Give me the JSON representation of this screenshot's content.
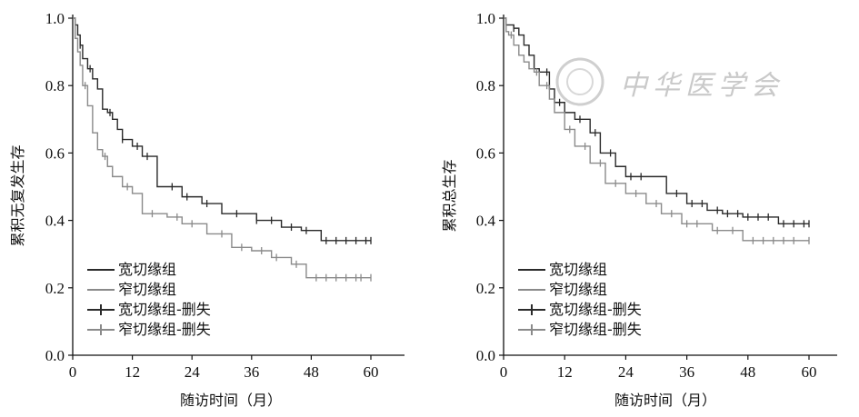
{
  "watermark": {
    "text": "中华医学会"
  },
  "colors": {
    "wide": "#2a2a2a",
    "narrow": "#8a8a8a",
    "axis": "#111111",
    "watermark": "#c9c9c9"
  },
  "chart_data": [
    {
      "type": "line",
      "title": "",
      "xlabel": "随访时间（月）",
      "ylabel": "累积无复发生存",
      "xlim": [
        0,
        60
      ],
      "ylim": [
        0,
        1.0
      ],
      "xticks": [
        0,
        12,
        24,
        36,
        48,
        60
      ],
      "yticks": [
        "0.0",
        "0.2",
        "0.4",
        "0.6",
        "0.8",
        "1.0"
      ],
      "legend": {
        "position": "bottom-left",
        "entries": [
          {
            "label": "宽切缘组",
            "style": "line",
            "series": "wide"
          },
          {
            "label": "窄切缘组",
            "style": "line",
            "series": "narrow"
          },
          {
            "label": "宽切缘组-删失",
            "style": "censor",
            "series": "wide"
          },
          {
            "label": "窄切缘组-删失",
            "style": "censor",
            "series": "narrow"
          }
        ]
      },
      "series": [
        {
          "name": "宽切缘组",
          "key": "wide",
          "x": [
            0,
            0.5,
            1,
            1.5,
            2,
            3,
            4,
            5,
            6,
            7,
            8,
            9,
            10,
            12,
            14,
            17,
            22,
            26,
            30,
            37,
            42,
            46,
            50,
            60
          ],
          "y": [
            1.0,
            0.98,
            0.95,
            0.92,
            0.88,
            0.85,
            0.82,
            0.79,
            0.73,
            0.72,
            0.7,
            0.67,
            0.64,
            0.62,
            0.59,
            0.5,
            0.47,
            0.45,
            0.42,
            0.4,
            0.38,
            0.37,
            0.34,
            0.34
          ],
          "censored_x": [
            1.5,
            3.5,
            7.5,
            10,
            13,
            15,
            20,
            23,
            27,
            33,
            37,
            40,
            44,
            47,
            51,
            53,
            55,
            57,
            59,
            60
          ]
        },
        {
          "name": "窄切缘组",
          "key": "narrow",
          "x": [
            0,
            0.5,
            1,
            1.5,
            2,
            3,
            4,
            5,
            6,
            7,
            8,
            10,
            12,
            14,
            19,
            22,
            27,
            32,
            36,
            40,
            44,
            47,
            60
          ],
          "y": [
            1.0,
            0.94,
            0.9,
            0.86,
            0.8,
            0.74,
            0.66,
            0.61,
            0.59,
            0.56,
            0.53,
            0.5,
            0.48,
            0.42,
            0.41,
            0.39,
            0.36,
            0.32,
            0.31,
            0.29,
            0.27,
            0.23,
            0.23
          ],
          "censored_x": [
            2.5,
            6.5,
            11,
            16,
            21,
            24,
            30,
            34,
            38,
            41,
            45,
            49,
            51,
            53,
            55,
            57,
            58,
            60
          ]
        }
      ]
    },
    {
      "type": "line",
      "title": "",
      "xlabel": "随访时间（月）",
      "ylabel": "累积总生存",
      "xlim": [
        0,
        60
      ],
      "ylim": [
        0,
        1.0
      ],
      "xticks": [
        0,
        12,
        24,
        36,
        48,
        60
      ],
      "yticks": [
        "0.0",
        "0.2",
        "0.4",
        "0.6",
        "0.8",
        "1.0"
      ],
      "legend": {
        "position": "bottom-left",
        "entries": [
          {
            "label": "宽切缘组",
            "style": "line",
            "series": "wide"
          },
          {
            "label": "窄切缘组",
            "style": "line",
            "series": "narrow"
          },
          {
            "label": "宽切缘组-删失",
            "style": "censor",
            "series": "wide"
          },
          {
            "label": "窄切缘组-删失",
            "style": "censor",
            "series": "narrow"
          }
        ]
      },
      "series": [
        {
          "name": "宽切缘组",
          "key": "wide",
          "x": [
            0,
            0.5,
            2,
            3,
            4,
            5,
            6,
            7,
            9,
            10,
            12,
            14,
            17,
            19,
            22,
            24,
            28,
            32,
            36,
            40,
            43,
            47,
            54,
            60
          ],
          "y": [
            1.0,
            0.98,
            0.97,
            0.95,
            0.92,
            0.89,
            0.85,
            0.84,
            0.79,
            0.75,
            0.72,
            0.7,
            0.66,
            0.6,
            0.56,
            0.53,
            0.53,
            0.48,
            0.45,
            0.43,
            0.42,
            0.41,
            0.39,
            0.39
          ],
          "censored_x": [
            2,
            8.5,
            11,
            15,
            18,
            21,
            25,
            27,
            34,
            37,
            39,
            42,
            44,
            46,
            48,
            50,
            52,
            55,
            57,
            59,
            60
          ]
        },
        {
          "name": "窄切缘组",
          "key": "narrow",
          "x": [
            0,
            0.5,
            1,
            2,
            3,
            4,
            5,
            6,
            7,
            9,
            10,
            12,
            14,
            17,
            20,
            24,
            28,
            31,
            35,
            41,
            47,
            60
          ],
          "y": [
            1.0,
            0.96,
            0.95,
            0.92,
            0.89,
            0.87,
            0.85,
            0.84,
            0.8,
            0.76,
            0.72,
            0.67,
            0.62,
            0.57,
            0.51,
            0.48,
            0.45,
            0.42,
            0.39,
            0.37,
            0.34,
            0.34
          ],
          "censored_x": [
            1.5,
            6.5,
            8.5,
            13,
            16,
            19,
            22,
            26,
            30,
            33,
            36,
            38,
            42,
            45,
            49,
            51,
            53,
            55,
            57,
            60
          ]
        }
      ]
    }
  ]
}
